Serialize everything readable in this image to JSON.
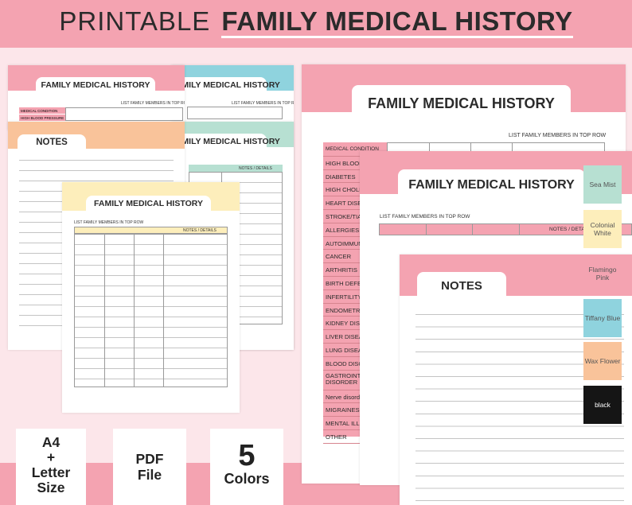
{
  "header": {
    "title_plain": "PRINTABLE",
    "title_bold": "FAMILY MEDICAL HISTORY"
  },
  "page_titles": {
    "fmh": "FAMILY MEDICAL HISTORY",
    "notes": "NOTES"
  },
  "labels": {
    "list_family": "LIST FAMILY MEMBERS IN TOP ROW",
    "notes_details": "NOTES / DETAILS",
    "notes_detail_short": "NOTES / DETAI",
    "medical_condition": "MEDICAL CONDITION",
    "high_bp": "HIGH BLOOD PRESSURE"
  },
  "conditions": [
    "MEDICAL CONDITION",
    "HIGH BLOOD",
    "DIABETES",
    "HIGH CHOLES",
    "HEART DISEAS",
    "STROKE/TIA",
    "ALLERGIES",
    "AUTOIMMUN",
    "CANCER",
    "ARTHRITIS",
    "BIRTH DEFECT",
    "INFERTILITY",
    "ENDOMETRIO",
    "KIDNEY DISEA",
    "LIVER DISEAS",
    "LUNG DISEAS",
    "BLOOD DISOR",
    "GASTROINTE DISORDER",
    "Nerve disord",
    "MIGRAINES",
    "MENTAL ILLNE",
    "OTHER"
  ],
  "swatches": [
    {
      "name": "Sea Mist",
      "color": "#b7e0d2"
    },
    {
      "name": "Colonial White",
      "color": "#fdeebb"
    },
    {
      "name": "Flamingo Pink",
      "color": "#f4a3b1"
    },
    {
      "name": "Tiffany Blue",
      "color": "#8fd3de"
    },
    {
      "name": "Wax Flower",
      "color": "#f9c39a"
    },
    {
      "name": "black",
      "color": "#151515"
    }
  ],
  "badges": {
    "size": "A4 + Letter Size",
    "size_l1": "A4",
    "size_l2": "+",
    "size_l3": "Letter",
    "size_l4": "Size",
    "file_l1": "PDF",
    "file_l2": "File",
    "colors_num": "5",
    "colors_label": "Colors"
  }
}
